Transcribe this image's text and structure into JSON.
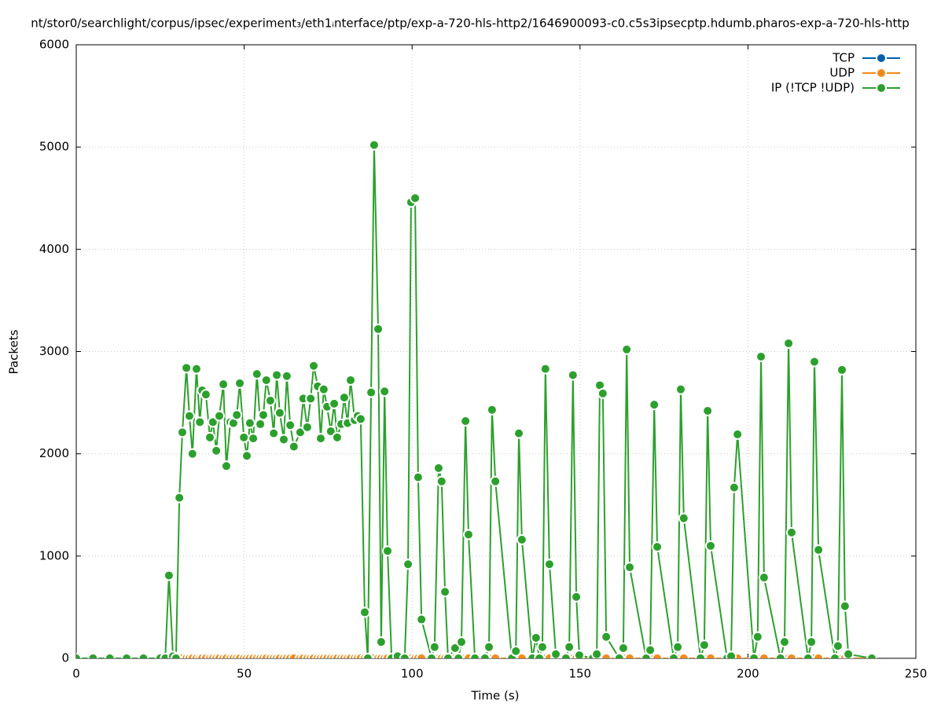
{
  "chart_data": {
    "type": "line",
    "title": "nt/stor0/searchlight/corpus/ipsec/experiment₃/eth1ᵢnterface/ptp/exp-a-720-hls-http2/1646900093-c0.c5s3ipsecptp.hdumb.pharos-exp-a-720-hls-http",
    "x_label": "Time (s)",
    "y_label": "Packets",
    "xlim": [
      0,
      250
    ],
    "xticks": [
      0,
      50,
      100,
      150,
      200,
      250
    ],
    "ylim": [
      0,
      6000
    ],
    "yticks": [
      0,
      1000,
      2000,
      3000,
      4000,
      5000,
      6000
    ],
    "grid": true,
    "legend": "top-right",
    "x": [
      0,
      5,
      10,
      15,
      20,
      25,
      26.5,
      27.6,
      28.8,
      29.7,
      30.7,
      31.6,
      32.8,
      33.7,
      34.6,
      35.8,
      36.8,
      37.5,
      38.6,
      39.8,
      40.7,
      41.7,
      42.6,
      43.8,
      44.7,
      45.9,
      46.8,
      47.8,
      48.7,
      49.9,
      50.8,
      51.7,
      52.7,
      53.8,
      54.8,
      55.7,
      56.6,
      57.8,
      58.8,
      59.7,
      60.6,
      61.8,
      62.7,
      63.7,
      64.8,
      66.7,
      67.6,
      68.8,
      69.8,
      70.7,
      71.9,
      72.8,
      73.7,
      74.7,
      75.8,
      76.8,
      77.7,
      78.9,
      79.8,
      80.8,
      81.7,
      82.9,
      83.8,
      84.7,
      85.9,
      86.8,
      87.8,
      88.7,
      89.9,
      90.8,
      91.8,
      92.7,
      93.9,
      95.7,
      97.8,
      98.8,
      99.7,
      100.9,
      101.8,
      102.8,
      105.8,
      106.7,
      107.9,
      108.8,
      109.8,
      110.7,
      112.8,
      113.8,
      114.7,
      115.9,
      116.8,
      118.7,
      121.7,
      122.9,
      123.8,
      124.8,
      129.7,
      130.9,
      131.8,
      132.7,
      135.8,
      136.9,
      137.9,
      138.8,
      139.7,
      140.9,
      142.8,
      145.8,
      146.8,
      147.9,
      148.9,
      149.8,
      153.8,
      155.0,
      155.9,
      156.8,
      157.8,
      161.7,
      162.9,
      163.9,
      164.8,
      169.7,
      170.9,
      172.1,
      173.0,
      177.9,
      179.1,
      180.0,
      180.9,
      185.9,
      187.0,
      188.0,
      188.9,
      193.8,
      195.0,
      195.9,
      196.9,
      201.8,
      202.9,
      203.9,
      204.8,
      209.7,
      210.9,
      212.1,
      213.0,
      217.9,
      218.9,
      219.8,
      221.0,
      225.9,
      226.8,
      228.0,
      228.9,
      229.9,
      236.9
    ],
    "series": [
      {
        "name": "TCP",
        "color": "#0060ad",
        "values": [
          0,
          0,
          0,
          0,
          0,
          0,
          0,
          0,
          0,
          0,
          0,
          0,
          0,
          0,
          0,
          0,
          0,
          0,
          0,
          0,
          0,
          0,
          0,
          0,
          0,
          0,
          0,
          0,
          0,
          0,
          0,
          0,
          0,
          0,
          0,
          0,
          0,
          0,
          0,
          0,
          0,
          0,
          0,
          0,
          0,
          0,
          0,
          0,
          0,
          0,
          0,
          0,
          0,
          0,
          0,
          0,
          0,
          0,
          0,
          0,
          0,
          0,
          0,
          0,
          0,
          0,
          0,
          0,
          0,
          0,
          0,
          0,
          0,
          0,
          0,
          0,
          0,
          0,
          0,
          0,
          0,
          0,
          0,
          0,
          0,
          0,
          0,
          0,
          0,
          0,
          0,
          0,
          0,
          0,
          0,
          0,
          0,
          0,
          0,
          0,
          0,
          0,
          0,
          0,
          0,
          0,
          0,
          0,
          0,
          0,
          0,
          0,
          0,
          0,
          0,
          0,
          0,
          0,
          0,
          0,
          0,
          0,
          0,
          0,
          0,
          0,
          0,
          0,
          0,
          0,
          0,
          0,
          0,
          0,
          0,
          0,
          0,
          0,
          0,
          0,
          0,
          0,
          0,
          0,
          0,
          0,
          0,
          0,
          0,
          0,
          0,
          0,
          0,
          0,
          0
        ]
      },
      {
        "name": "UDP",
        "color": "#f28a1a",
        "values": [
          0,
          0,
          0,
          0,
          0,
          0,
          0,
          0,
          0,
          0,
          0,
          0,
          0,
          0,
          0,
          0,
          0,
          0,
          0,
          0,
          0,
          0,
          0,
          0,
          0,
          0,
          0,
          0,
          0,
          0,
          0,
          0,
          0,
          0,
          0,
          0,
          0,
          0,
          0,
          0,
          0,
          0,
          0,
          0,
          0,
          0,
          0,
          0,
          0,
          0,
          0,
          0,
          0,
          0,
          0,
          0,
          0,
          0,
          0,
          0,
          0,
          0,
          0,
          0,
          0,
          0,
          0,
          0,
          0,
          0,
          0,
          0,
          0,
          0,
          0,
          0,
          0,
          0,
          0,
          0,
          0,
          0,
          0,
          0,
          0,
          0,
          0,
          0,
          0,
          0,
          0,
          0,
          0,
          0,
          0,
          0,
          0,
          0,
          0,
          0,
          0,
          0,
          0,
          0,
          0,
          0,
          0,
          0,
          0,
          0,
          0,
          0,
          0,
          0,
          0,
          0,
          0,
          0,
          0,
          0,
          0,
          0,
          0,
          0,
          0,
          0,
          0,
          0,
          0,
          0,
          0,
          0,
          0,
          0,
          0,
          0,
          0,
          0,
          0,
          0,
          0,
          0,
          0,
          0,
          0,
          0,
          0,
          0,
          0,
          0,
          0,
          0,
          0,
          0,
          0
        ]
      },
      {
        "name": "IP (!TCP  !UDP)",
        "color": "#2ca02c",
        "values": [
          0,
          0,
          0,
          0,
          0,
          0,
          0,
          810,
          20,
          0,
          1570,
          2210,
          2840,
          2370,
          2000,
          2830,
          2310,
          2620,
          2580,
          2160,
          2310,
          2030,
          2370,
          2680,
          1880,
          2310,
          2300,
          2380,
          2690,
          2160,
          1980,
          2300,
          2150,
          2780,
          2290,
          2380,
          2720,
          2520,
          2200,
          2770,
          2400,
          2140,
          2760,
          2280,
          2070,
          2210,
          2540,
          2260,
          2540,
          2860,
          2660,
          2150,
          2630,
          2460,
          2220,
          2490,
          2160,
          2290,
          2550,
          2300,
          2720,
          2330,
          2370,
          2340,
          450,
          0,
          2600,
          5020,
          3220,
          160,
          2610,
          1050,
          0,
          20,
          0,
          920,
          4460,
          4500,
          1770,
          380,
          0,
          110,
          1860,
          1730,
          650,
          0,
          100,
          0,
          160,
          2320,
          1210,
          0,
          0,
          110,
          2430,
          1730,
          0,
          70,
          2200,
          1160,
          0,
          200,
          0,
          110,
          2830,
          920,
          40,
          0,
          110,
          2770,
          600,
          30,
          0,
          40,
          2670,
          2590,
          210,
          0,
          100,
          3020,
          890,
          0,
          80,
          2480,
          1090,
          0,
          110,
          2630,
          1370,
          0,
          130,
          2420,
          1100,
          0,
          20,
          1670,
          2190,
          0,
          210,
          2950,
          790,
          0,
          160,
          3080,
          1230,
          0,
          160,
          2900,
          1060,
          0,
          120,
          2820,
          510,
          40,
          0
        ]
      }
    ]
  }
}
